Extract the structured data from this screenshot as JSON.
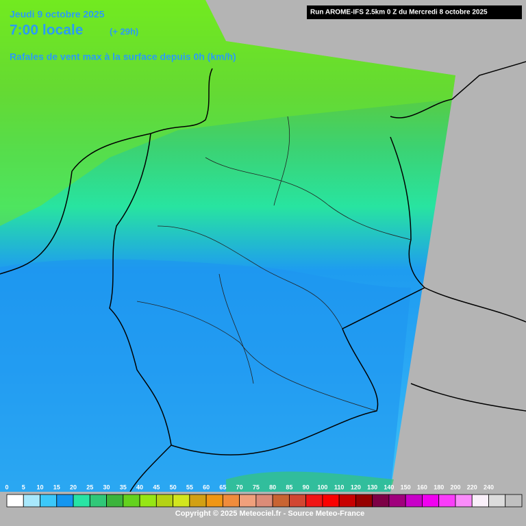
{
  "header": {
    "date": "Jeudi 9 octobre 2025",
    "time": "7:00 locale",
    "offset": "(+ 29h)",
    "parameter": "Rafales de vent max à la surface depuis 0h (km/h)",
    "run": "Run AROME-IFS 2.5km 0 Z du Mercredi 8 octobre 2025"
  },
  "legend": {
    "labels": [
      0,
      5,
      10,
      15,
      20,
      25,
      30,
      35,
      40,
      45,
      50,
      55,
      60,
      65,
      70,
      75,
      80,
      85,
      90,
      100,
      110,
      120,
      130,
      140,
      150,
      160,
      180,
      200,
      220,
      240
    ],
    "colors": [
      "#ffffff",
      "#a8e8fc",
      "#3cc8fa",
      "#1496f0",
      "#28e4a4",
      "#30c878",
      "#3cb43c",
      "#64d21e",
      "#96e614",
      "#b4d214",
      "#d2e61e",
      "#d2a014",
      "#f09614",
      "#f08c3c",
      "#f0a07c",
      "#dc8c78",
      "#c86432",
      "#d24632",
      "#f01414",
      "#fa0000",
      "#c80000",
      "#960000",
      "#7d0046",
      "#a0007d",
      "#c800c8",
      "#f000f0",
      "#fa3cfa",
      "#fa8cfa",
      "#faf0fa",
      "#dcdcdc",
      "#c0c0c0"
    ]
  },
  "footer": "Copyright © 2025 Meteociel.fr - Source Meteo-France"
}
